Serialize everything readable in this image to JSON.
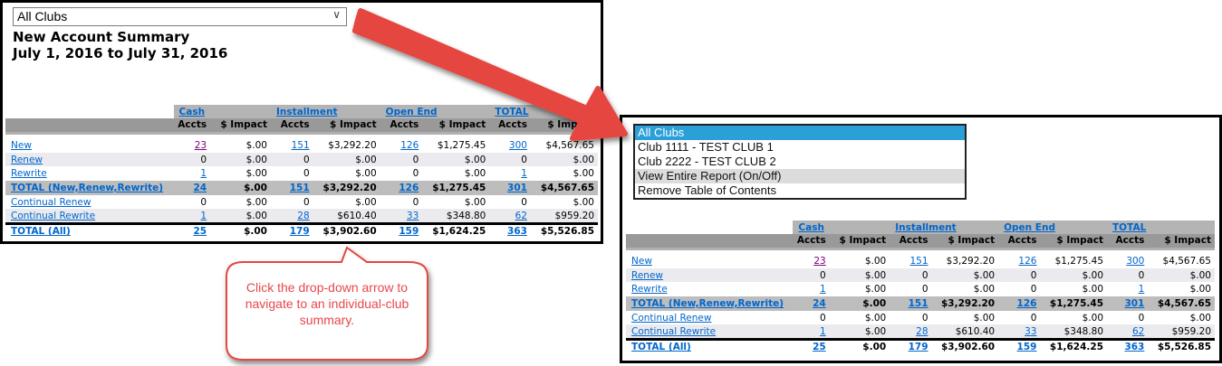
{
  "left_panel": {
    "dropdown_value": "All Clubs",
    "title": "New Account Summary",
    "date_range": "July 1, 2016 to July 31, 2016"
  },
  "callout": {
    "text": "Click the drop-down arrow to navigate to an individual-club summary."
  },
  "right_panel": {
    "dropdown_options": [
      {
        "label": "All Clubs",
        "selected": true
      },
      {
        "label": "Club 1111  -  TEST CLUB 1"
      },
      {
        "label": "Club 2222  -  TEST CLUB 2"
      },
      {
        "label": "View Entire Report (On/Off)"
      },
      {
        "label": "Remove Table of Contents"
      }
    ]
  },
  "table": {
    "groups": [
      "Cash",
      "Installment",
      "Open End",
      "TOTAL"
    ],
    "subheaders": [
      "Accts",
      "$ Impact",
      "Accts",
      "$ Impact",
      "Accts",
      "$ Impact",
      "Accts",
      "$ Impact"
    ],
    "rows": [
      {
        "label": "New",
        "style": "",
        "cells": [
          "23",
          "$.00",
          "151",
          "$3,292.20",
          "126",
          "$1,275.45",
          "300",
          "$4,567.65"
        ],
        "links": [
          1,
          0,
          1,
          0,
          1,
          0,
          1,
          0
        ]
      },
      {
        "label": "Renew",
        "style": "shade",
        "cells": [
          "0",
          "$.00",
          "0",
          "$.00",
          "0",
          "$.00",
          "0",
          "$.00"
        ],
        "links": [
          0,
          0,
          0,
          0,
          0,
          0,
          0,
          0
        ]
      },
      {
        "label": "Rewrite",
        "style": "",
        "cells": [
          "1",
          "$.00",
          "0",
          "$.00",
          "0",
          "$.00",
          "1",
          "$.00"
        ],
        "links": [
          1,
          0,
          0,
          0,
          0,
          0,
          1,
          0
        ]
      },
      {
        "label": "TOTAL (New,Renew,Rewrite)",
        "style": "tot",
        "cells": [
          "24",
          "$.00",
          "151",
          "$3,292.20",
          "126",
          "$1,275.45",
          "301",
          "$4,567.65"
        ],
        "links": [
          1,
          0,
          1,
          0,
          1,
          0,
          1,
          0
        ]
      },
      {
        "label": "Continual Renew",
        "style": "",
        "cells": [
          "0",
          "$.00",
          "0",
          "$.00",
          "0",
          "$.00",
          "0",
          "$.00"
        ],
        "links": [
          0,
          0,
          0,
          0,
          0,
          0,
          0,
          0
        ]
      },
      {
        "label": "Continual Rewrite",
        "style": "shade",
        "cells": [
          "1",
          "$.00",
          "28",
          "$610.40",
          "33",
          "$348.80",
          "62",
          "$959.20"
        ],
        "links": [
          1,
          0,
          1,
          0,
          1,
          0,
          1,
          0
        ]
      },
      {
        "label": "TOTAL (All)",
        "style": "all",
        "cells": [
          "25",
          "$.00",
          "179",
          "$3,902.60",
          "159",
          "$1,624.25",
          "363",
          "$5,526.85"
        ],
        "links": [
          1,
          0,
          1,
          0,
          1,
          0,
          1,
          0
        ]
      }
    ]
  },
  "colors": {
    "link": "#0066cc",
    "visited_link": "#800080",
    "annotation": "#e8474a",
    "selected_option": "#2a9fd8"
  }
}
